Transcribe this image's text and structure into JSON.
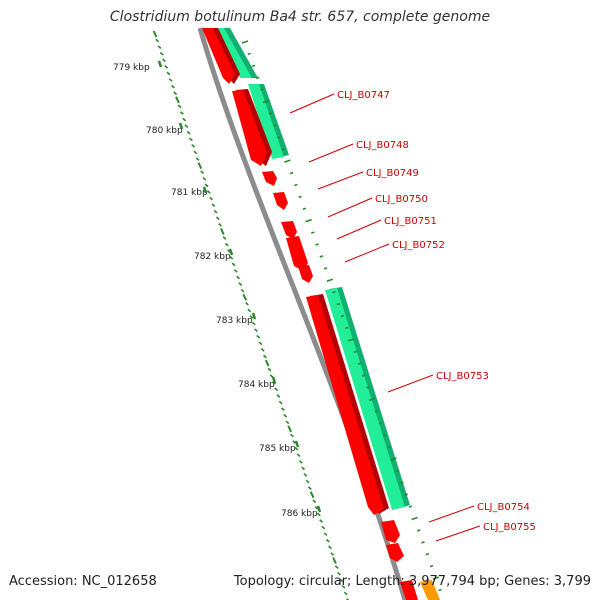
{
  "title": "Clostridium botulinum Ba4 str. 657, complete genome",
  "footer": {
    "accession": "Accession: NC_012658",
    "summary": "Topology: circular; Length: 3,977,794 bp; Genes: 3,799"
  },
  "colors": {
    "backbone": "#8c8c8c",
    "cds_red": "#ff0000",
    "cds_red_dark": "#b30000",
    "cds_green": "#22ee99",
    "cds_green_dark": "#10b070",
    "tick": "#2a8a2a",
    "label": "#cc0000",
    "orange": "#ff9900"
  },
  "scale": {
    "unit": "kbp",
    "labels": [
      {
        "text": "779 kbp",
        "kbp": 779
      },
      {
        "text": "780 kbp",
        "kbp": 780
      },
      {
        "text": "781 kbp",
        "kbp": 781
      },
      {
        "text": "782 kbp",
        "kbp": 782
      },
      {
        "text": "783 kbp",
        "kbp": 783
      },
      {
        "text": "784 kbp",
        "kbp": 784
      },
      {
        "text": "785 kbp",
        "kbp": 785
      },
      {
        "text": "786 kbp",
        "kbp": 786
      }
    ]
  },
  "genes": [
    {
      "name": "CLJ_B0747"
    },
    {
      "name": "CLJ_B0748"
    },
    {
      "name": "CLJ_B0749"
    },
    {
      "name": "CLJ_B0750"
    },
    {
      "name": "CLJ_B0751"
    },
    {
      "name": "CLJ_B0752"
    },
    {
      "name": "CLJ_B0753"
    },
    {
      "name": "CLJ_B0754"
    },
    {
      "name": "CLJ_B0755"
    }
  ]
}
